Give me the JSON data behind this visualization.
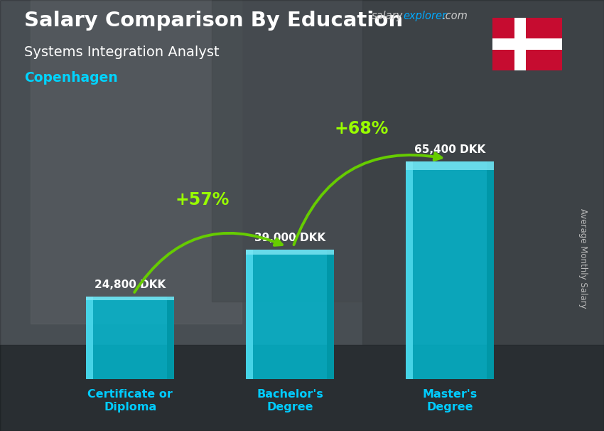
{
  "title": "Salary Comparison By Education",
  "subtitle": "Systems Integration Analyst",
  "city": "Copenhagen",
  "ylabel": "Average Monthly Salary",
  "website_part1": "salary",
  "website_part2": "explorer",
  "website_part3": ".com",
  "categories": [
    "Certificate or\nDiploma",
    "Bachelor's\nDegree",
    "Master's\nDegree"
  ],
  "values": [
    24800,
    39000,
    65400
  ],
  "value_labels": [
    "24,800 DKK",
    "39,000 DKK",
    "65,400 DKK"
  ],
  "pct_labels": [
    "+57%",
    "+68%"
  ],
  "bar_color_main": "#00bcd4",
  "bar_color_light": "#4dd9ec",
  "bar_color_dark": "#0097a7",
  "bar_alpha": 0.82,
  "bg_color": "#5a6a72",
  "title_color": "#ffffff",
  "subtitle_color": "#ffffff",
  "city_color": "#00d4ff",
  "label_color": "#ffffff",
  "pct_color": "#99ff00",
  "arrow_color": "#66cc00",
  "cat_color": "#00ccff",
  "website_color1": "#cccccc",
  "website_color2": "#00aaff",
  "flag_red": "#c60c30",
  "flag_white": "#ffffff",
  "ylim": [
    0,
    75000
  ],
  "bar_width": 0.55,
  "bar_positions": [
    0,
    1,
    2
  ]
}
